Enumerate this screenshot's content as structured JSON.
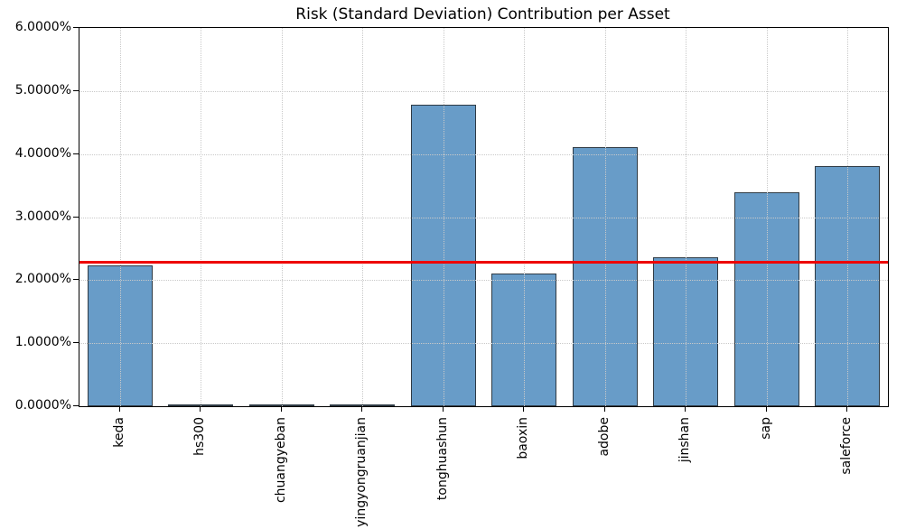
{
  "chart_data": {
    "type": "bar",
    "title": "Risk (Standard Deviation) Contribution per Asset",
    "categories": [
      "keda",
      "hs300",
      "chuangyeban",
      "yingyongruanjian",
      "tonghuashun",
      "baoxin",
      "adobe",
      "jinshan",
      "sap",
      "saleforce"
    ],
    "values": [
      2.24,
      0.01,
      0.01,
      0.01,
      4.79,
      2.1,
      4.11,
      2.36,
      3.39,
      3.81
    ],
    "unit": "%",
    "xlabel": "",
    "ylabel": "",
    "ylim": [
      0,
      6
    ],
    "ytick_values": [
      0,
      1,
      2,
      3,
      4,
      5,
      6
    ],
    "ytick_labels": [
      "0.0000%",
      "1.0000%",
      "2.0000%",
      "3.0000%",
      "4.0000%",
      "5.0000%",
      "6.0000%"
    ],
    "reference_line": {
      "value": 2.29,
      "color": "#ee0000"
    },
    "grid": "dotted",
    "legend": "none",
    "bar_fill_color": "#689cc8",
    "bar_edge_color": "#2e3a44"
  }
}
